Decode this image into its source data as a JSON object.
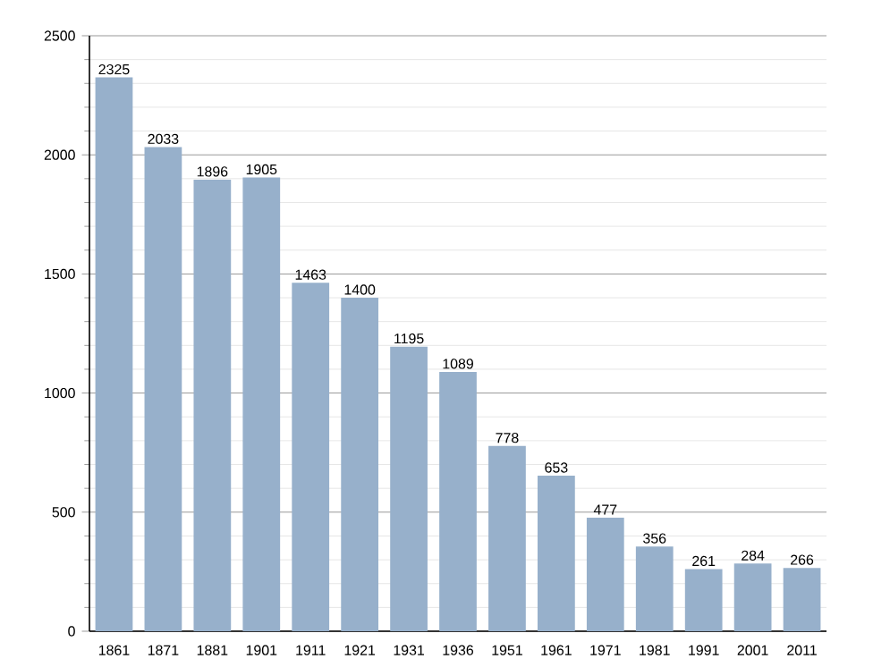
{
  "chart_data": {
    "type": "bar",
    "categories": [
      "1861",
      "1871",
      "1881",
      "1901",
      "1911",
      "1921",
      "1931",
      "1936",
      "1951",
      "1961",
      "1971",
      "1981",
      "1991",
      "2001",
      "2011"
    ],
    "values": [
      2325,
      2033,
      1896,
      1905,
      1463,
      1400,
      1195,
      1089,
      778,
      653,
      477,
      356,
      261,
      284,
      266
    ],
    "color": "#97b0cb",
    "ylim": [
      0,
      2500
    ],
    "yticks": [
      0,
      500,
      1000,
      1500,
      2000,
      2500
    ],
    "grid": "y",
    "data_labels": true
  }
}
